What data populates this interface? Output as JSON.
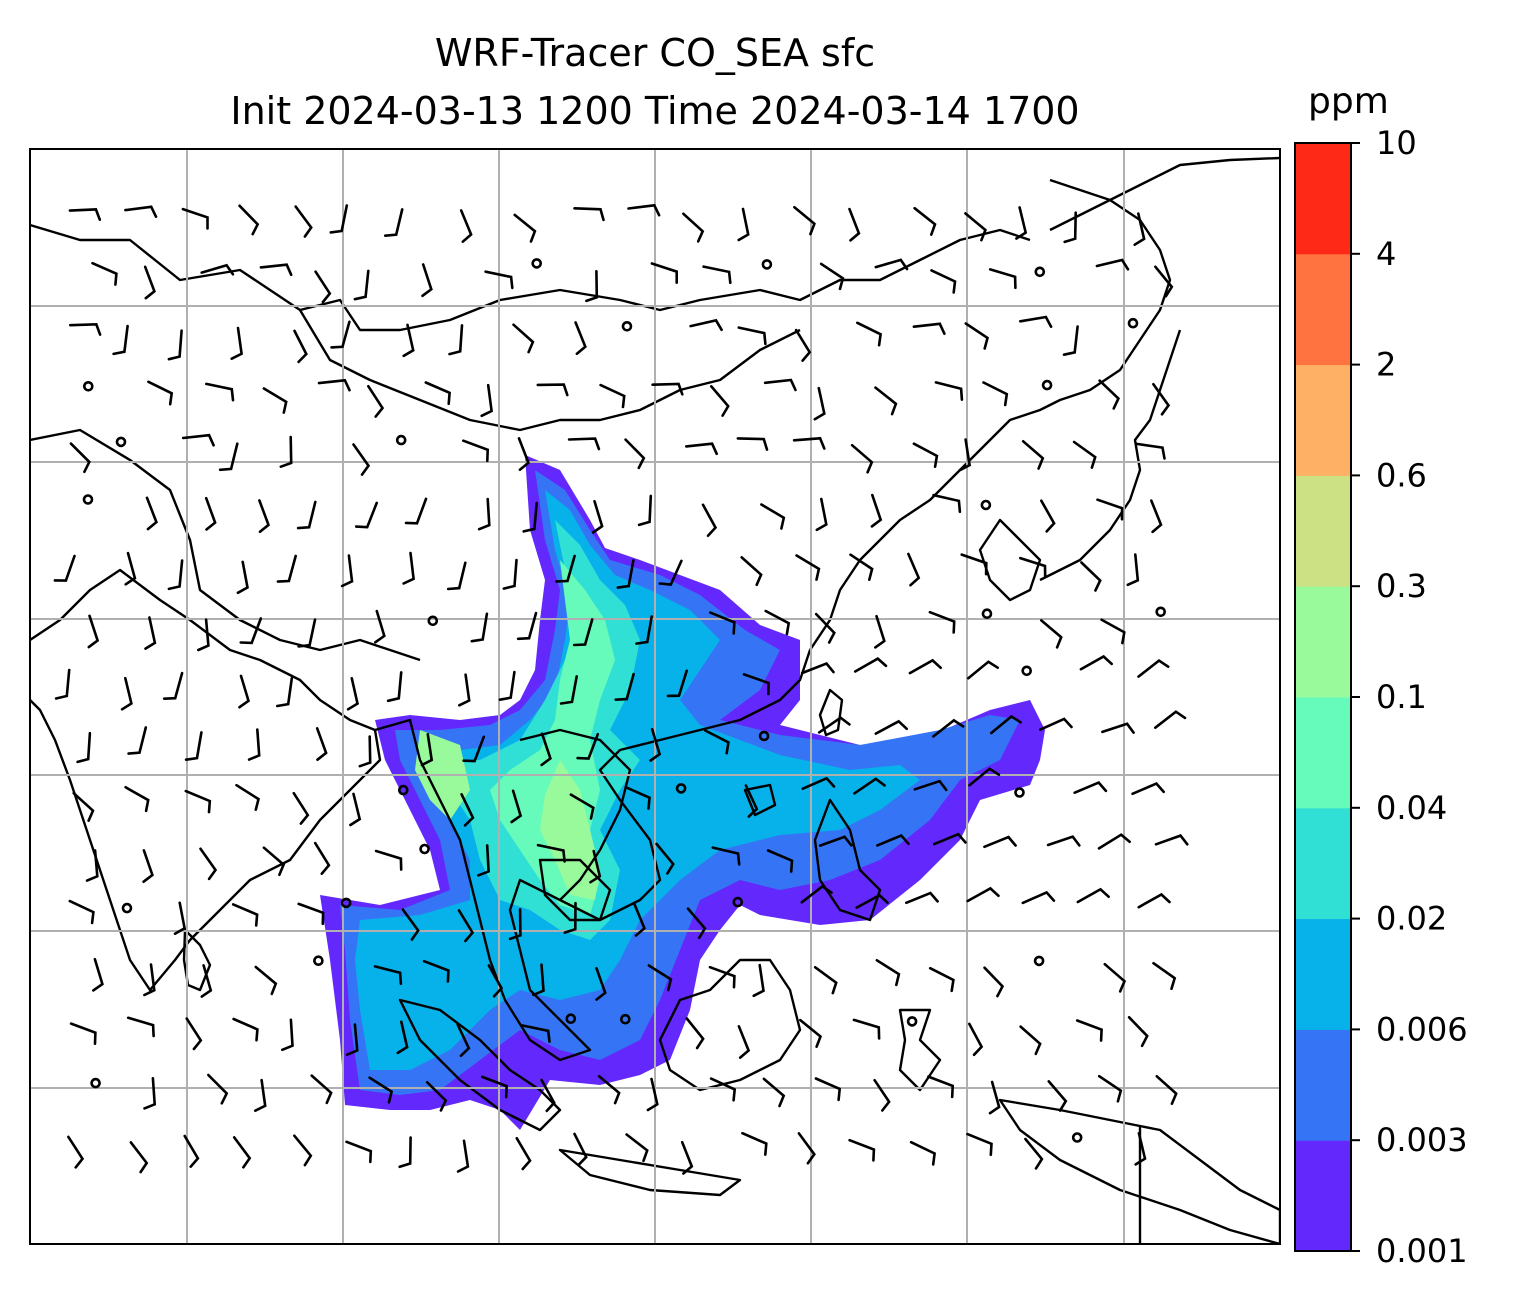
{
  "title": {
    "line1": "WRF-Tracer CO_SEA sfc",
    "line2": "Init 2024-03-13 1200 Time 2024-03-14 1700"
  },
  "colorbar": {
    "unit": "ppm",
    "levels": [
      "0.001",
      "0.003",
      "0.006",
      "0.02",
      "0.04",
      "0.1",
      "0.3",
      "0.6",
      "2",
      "4",
      "10"
    ],
    "colors": [
      "#6328fc",
      "#3575f5",
      "#07b1ea",
      "#30e0d4",
      "#66fbbb",
      "#99fa9c",
      "#cce084",
      "#feb164",
      "#fe7340",
      "#fe2a17"
    ]
  },
  "map": {
    "background": "#ffffff",
    "gridlines": true,
    "coastline_color": "#000000",
    "wind_barbs": true
  }
}
